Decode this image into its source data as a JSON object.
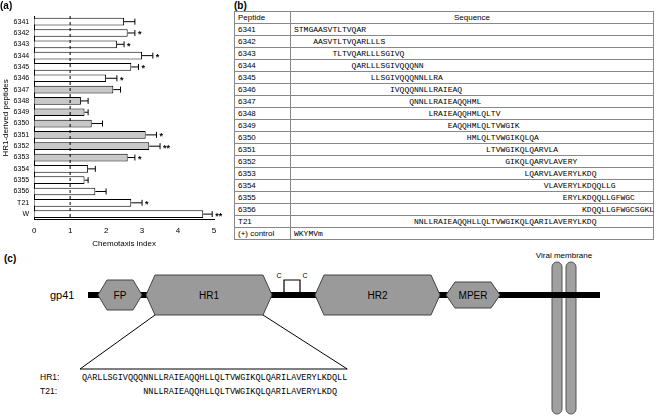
{
  "chart_data": {
    "type": "bar",
    "title": "(a)",
    "orientation": "horizontal",
    "x_label": "Chemotaxis index",
    "y_label": "HR1-derived peptides",
    "categories": [
      "6341",
      "6342",
      "6343",
      "6344",
      "6345",
      "6346",
      "6347",
      "6348",
      "6349",
      "6350",
      "6351",
      "6352",
      "6353",
      "6354",
      "6355",
      "6356",
      "T21",
      "W"
    ],
    "values": [
      2.5,
      2.6,
      2.3,
      3.0,
      2.7,
      2.0,
      2.2,
      1.3,
      1.4,
      1.6,
      3.1,
      3.2,
      2.6,
      1.5,
      1.4,
      1.7,
      2.7,
      4.7
    ],
    "errors": [
      0.3,
      0.2,
      0.2,
      0.3,
      0.2,
      0.3,
      0.2,
      0.2,
      0.1,
      0.3,
      0.3,
      0.3,
      0.2,
      0.2,
      0.1,
      0.3,
      0.3,
      0.25
    ],
    "significance": [
      null,
      "*",
      "*",
      "*",
      "*",
      "*",
      null,
      null,
      null,
      null,
      "*",
      "**",
      "*",
      null,
      null,
      null,
      "*",
      "**"
    ],
    "colors": [
      "#ffffff",
      "#ffffff",
      "#ffffff",
      "#ffffff",
      "#ffffff",
      "#ffffff",
      "#c8c8c8",
      "#c8c8c8",
      "#c8c8c8",
      "#c8c8c8",
      "#c8c8c8",
      "#c8c8c8",
      "#c8c8c8",
      "#ffffff",
      "#ffffff",
      "#ffffff",
      "#ffffff",
      "#ffffff"
    ],
    "reference_x": 1,
    "xlim": [
      0,
      5
    ],
    "xticks": [
      0,
      1,
      2,
      3,
      4,
      5
    ],
    "grid": false
  },
  "table": {
    "label": "(b)",
    "header": [
      "Peptide",
      "Sequence"
    ],
    "rows": [
      [
        "6341",
        "STMGAASVTLTVQAR"
      ],
      [
        "6342",
        "AASVTLTVQARLLLS"
      ],
      [
        "6343",
        "TLTVQARLLLSGIVQ"
      ],
      [
        "6344",
        "QARLLLSGIVQQQNN"
      ],
      [
        "6345",
        "LLSGIVQQQNNLLRA"
      ],
      [
        "6346",
        "IVQQQNNLLRAIEAQ"
      ],
      [
        "6347",
        "QNNLLRAIEAQQHML"
      ],
      [
        "6348",
        "LRAIEAQQHMLQLTV"
      ],
      [
        "6349",
        "EAQQHMLQLTVWGIK"
      ],
      [
        "6350",
        "HMLQLTVWGIKQLQA"
      ],
      [
        "6351",
        "LTVWGIKQLQARVLA"
      ],
      [
        "6352",
        "GIKQLQARVLAVERY"
      ],
      [
        "6353",
        "LQARVLAVERYLKDQ"
      ],
      [
        "6354",
        "VLAVERYLKDQQLLG"
      ],
      [
        "6355",
        "ERYLKDQQLLGFWGC"
      ],
      [
        "6356",
        "KDQQLLGFWGCSGKL"
      ],
      [
        "T21",
        "NNLLRAIEAQQHLLQLTVWGIKQLQARILAVERYLKDQ"
      ],
      [
        "(+) control",
        "WKYMVm"
      ]
    ]
  },
  "diagram": {
    "label": "(c)",
    "protein": "gp41",
    "domains": [
      "FP",
      "HR1",
      "HR2",
      "MPER"
    ],
    "disulfide": [
      "C",
      "C"
    ],
    "membrane": "Viral membrane",
    "sequences": [
      {
        "name": "HR1:",
        "sequence": "QARLLSGIVQQQNNLLRAIEAQQHLLQLTVWGIKQLQARILAVERYLKDQLL"
      },
      {
        "name": "T21:",
        "sequence": "NNLLRAIEAQQHLLQLTVWGIKQLQARILAVERYLKDQ"
      }
    ]
  }
}
